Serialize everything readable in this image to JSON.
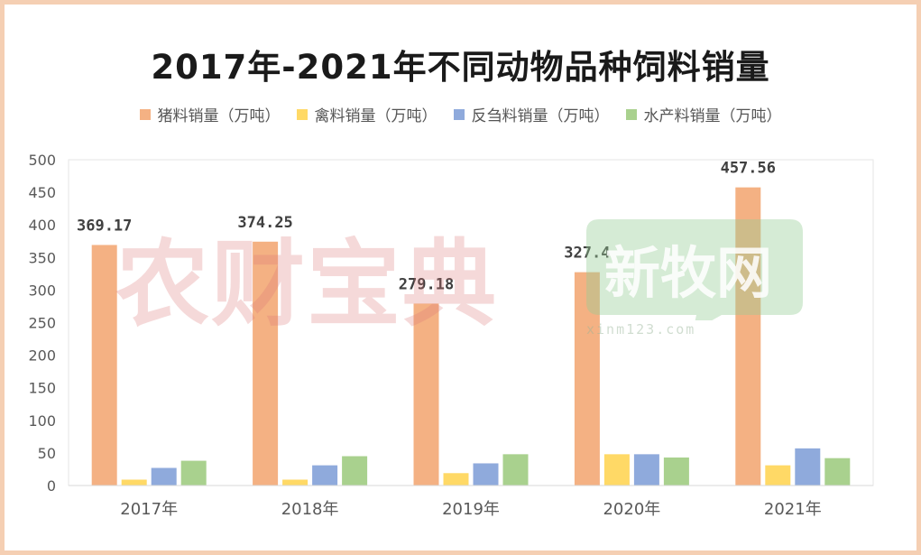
{
  "chart_data": {
    "type": "bar",
    "title": "2017年-2021年不同动物品种饲料销量",
    "categories": [
      "2017年",
      "2018年",
      "2019年",
      "2020年",
      "2021年"
    ],
    "ylim": [
      0,
      500
    ],
    "yticks": [
      0,
      50,
      100,
      150,
      200,
      250,
      300,
      350,
      400,
      450,
      500
    ],
    "grid": false,
    "legend_position": "top",
    "series": [
      {
        "name": "猪料销量（万吨）",
        "color": "#f4b183",
        "values": [
          369.17,
          374.25,
          279.18,
          327.4,
          457.56
        ],
        "labels": [
          "369.17",
          "374.25",
          "279.18",
          "327.4",
          "457.56"
        ]
      },
      {
        "name": "禽料销量（万吨）",
        "color": "#ffd966",
        "values": [
          9,
          9,
          19,
          48,
          31
        ]
      },
      {
        "name": "反刍料销量（万吨）",
        "color": "#8faadc",
        "values": [
          27,
          31,
          34,
          48,
          57
        ]
      },
      {
        "name": "水产料销量（万吨）",
        "color": "#a9d18e",
        "values": [
          38,
          45,
          48,
          43,
          42
        ]
      }
    ]
  },
  "watermarks": {
    "left_text": "农财宝典",
    "logo_text": "新牧网",
    "logo_url": "xinm123.com"
  }
}
